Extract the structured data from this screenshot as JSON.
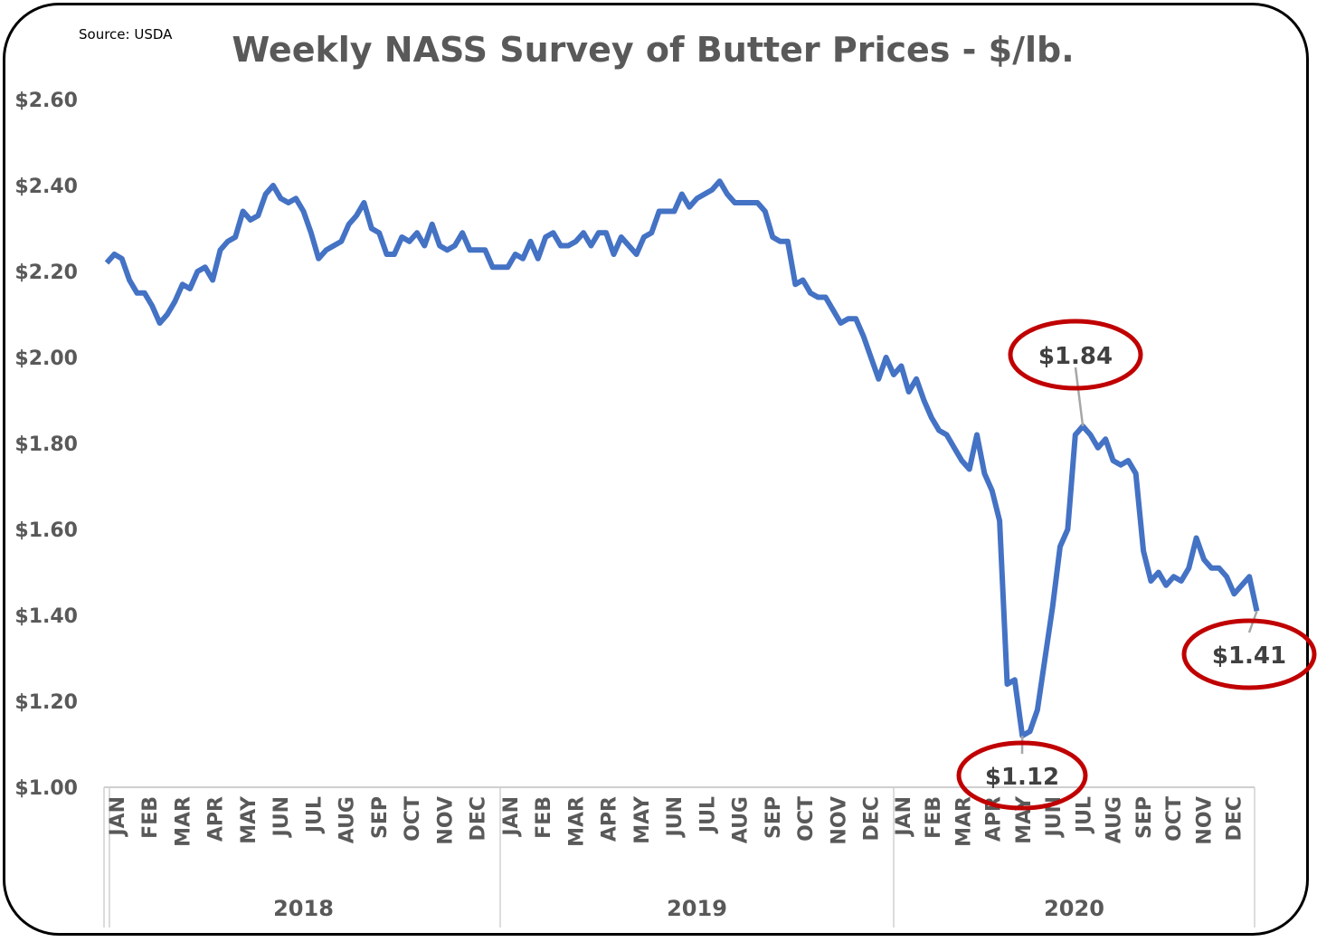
{
  "chart_data": {
    "type": "line",
    "title": "Weekly NASS Survey of Butter Prices - $/lb.",
    "source": "Source: USDA",
    "frequency": "weekly",
    "ylim": [
      1.0,
      2.6
    ],
    "y_ticks": [
      "$1.00",
      "$1.20",
      "$1.40",
      "$1.60",
      "$1.80",
      "$2.00",
      "$2.20",
      "$2.40",
      "$2.60"
    ],
    "y_tick_values": [
      1.0,
      1.2,
      1.4,
      1.6,
      1.8,
      2.0,
      2.2,
      2.4,
      2.6
    ],
    "grid": false,
    "legend": "none",
    "years": [
      "2018",
      "2019",
      "2020"
    ],
    "months": [
      "JAN",
      "FEB",
      "MAR",
      "APR",
      "MAY",
      "JUN",
      "JUL",
      "AUG",
      "SEP",
      "OCT",
      "NOV",
      "DEC"
    ],
    "series": [
      {
        "color": "#4472C4",
        "values": [
          2.22,
          2.24,
          2.23,
          2.18,
          2.15,
          2.15,
          2.12,
          2.08,
          2.1,
          2.13,
          2.17,
          2.16,
          2.2,
          2.21,
          2.18,
          2.25,
          2.27,
          2.28,
          2.34,
          2.32,
          2.33,
          2.38,
          2.4,
          2.37,
          2.36,
          2.37,
          2.34,
          2.29,
          2.23,
          2.25,
          2.26,
          2.27,
          2.31,
          2.33,
          2.36,
          2.3,
          2.29,
          2.24,
          2.24,
          2.28,
          2.27,
          2.29,
          2.26,
          2.31,
          2.26,
          2.25,
          2.26,
          2.29,
          2.25,
          2.25,
          2.25,
          2.21,
          2.21,
          2.21,
          2.24,
          2.23,
          2.27,
          2.23,
          2.28,
          2.29,
          2.26,
          2.26,
          2.27,
          2.29,
          2.26,
          2.29,
          2.29,
          2.24,
          2.28,
          2.26,
          2.24,
          2.28,
          2.29,
          2.34,
          2.34,
          2.34,
          2.38,
          2.35,
          2.37,
          2.38,
          2.39,
          2.41,
          2.38,
          2.36,
          2.36,
          2.36,
          2.36,
          2.34,
          2.28,
          2.27,
          2.27,
          2.17,
          2.18,
          2.15,
          2.14,
          2.14,
          2.11,
          2.08,
          2.09,
          2.09,
          2.05,
          2.0,
          1.95,
          2.0,
          1.96,
          1.98,
          1.92,
          1.95,
          1.9,
          1.86,
          1.83,
          1.82,
          1.79,
          1.76,
          1.74,
          1.82,
          1.73,
          1.69,
          1.62,
          1.24,
          1.25,
          1.12,
          1.13,
          1.18,
          1.3,
          1.42,
          1.56,
          1.6,
          1.82,
          1.84,
          1.82,
          1.79,
          1.81,
          1.76,
          1.75,
          1.76,
          1.73,
          1.55,
          1.48,
          1.5,
          1.47,
          1.49,
          1.48,
          1.51,
          1.58,
          1.53,
          1.51,
          1.51,
          1.49,
          1.45,
          1.47,
          1.49,
          1.41
        ]
      }
    ],
    "annotations": [
      {
        "label": "$1.84",
        "value": 1.84,
        "circle_color": "#C00000"
      },
      {
        "label": "$1.12",
        "value": 1.12,
        "circle_color": "#C00000"
      },
      {
        "label": "$1.41",
        "value": 1.41,
        "circle_color": "#C00000"
      }
    ]
  }
}
